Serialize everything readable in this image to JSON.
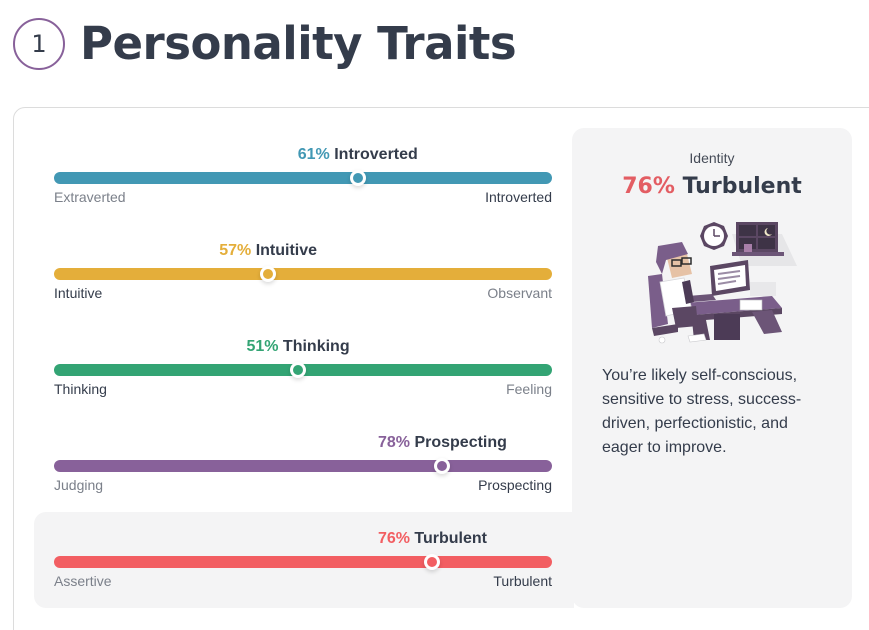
{
  "header": {
    "step_number": "1",
    "title": "Personality Traits"
  },
  "traits": [
    {
      "percent": "61%",
      "trait": "Introverted",
      "value": 61,
      "color": "#4298b4",
      "left_label": "Extraverted",
      "right_label": "Introverted",
      "dominant_side": "right"
    },
    {
      "percent": "57%",
      "trait": "Intuitive",
      "value": 43,
      "color": "#e4ae3a",
      "left_label": "Intuitive",
      "right_label": "Observant",
      "dominant_side": "left"
    },
    {
      "percent": "51%",
      "trait": "Thinking",
      "value": 49,
      "color": "#33a474",
      "left_label": "Thinking",
      "right_label": "Feeling",
      "dominant_side": "left"
    },
    {
      "percent": "78%",
      "trait": "Prospecting",
      "value": 78,
      "color": "#88619a",
      "left_label": "Judging",
      "right_label": "Prospecting",
      "dominant_side": "right"
    },
    {
      "percent": "76%",
      "trait": "Turbulent",
      "value": 76,
      "color": "#f25e62",
      "left_label": "Assertive",
      "right_label": "Turbulent",
      "dominant_side": "right",
      "selected": true
    }
  ],
  "identity_panel": {
    "label": "Identity",
    "percent": "76%",
    "trait": "Turbulent",
    "percent_color": "#e35d63",
    "illustration": "stressed-worker-at-desk-illustration",
    "description": "You’re likely self-conscious, sensitive to stress, success-driven, perfectionistic, and eager to improve."
  }
}
